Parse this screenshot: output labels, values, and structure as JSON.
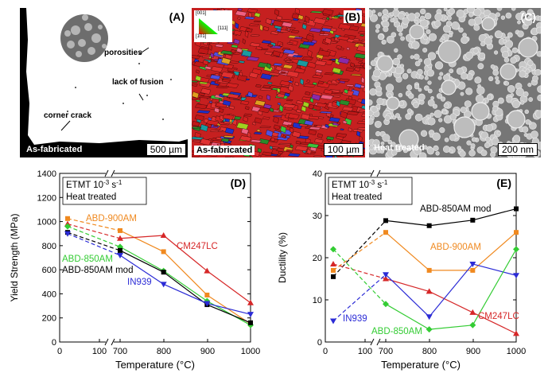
{
  "micrographs": {
    "a": {
      "label": "(A)",
      "caption": "As-fabricated",
      "scale": "500 µm",
      "annotations": [
        "porosities",
        "lack of fusion",
        "corner crack"
      ]
    },
    "b": {
      "label": "(B)",
      "caption": "As-fabricated",
      "scale": "100 µm",
      "key_labels": [
        "[001]",
        "[111]",
        "[101]"
      ]
    },
    "c": {
      "label": "(C)",
      "caption": "Heat treated",
      "scale": "200 nm"
    }
  },
  "colors": {
    "ABD-900AM": "#f0891f",
    "CM247LC": "#d62728",
    "ABD-850AM": "#33cc33",
    "ABD-850AM mod": "#000000",
    "IN939": "#2b2bd6"
  },
  "chart_data": [
    {
      "type": "line",
      "panel_label": "(D)",
      "legend_text": [
        "ETMT 10",
        "-3",
        " s",
        "-1"
      ],
      "legend_note": "Heat treated",
      "xlabel": "Temperature (°C)",
      "ylabel": "Yield Strength (MPa)",
      "x_ticks": [
        "0",
        "100",
        "700",
        "800",
        "900",
        "1000"
      ],
      "y_ticks": [
        0,
        200,
        400,
        600,
        800,
        1000,
        1200,
        1400
      ],
      "ylim": [
        0,
        1400
      ],
      "series": [
        {
          "name": "ABD-900AM",
          "x": [
            20,
            700,
            800,
            900,
            1000
          ],
          "values": [
            1025,
            925,
            750,
            390,
            150
          ]
        },
        {
          "name": "CM247LC",
          "x": [
            20,
            700,
            800,
            900,
            1000
          ],
          "values": [
            980,
            860,
            885,
            590,
            325
          ]
        },
        {
          "name": "ABD-850AM",
          "x": [
            20,
            700,
            800,
            900,
            1000
          ],
          "values": [
            960,
            790,
            590,
            340,
            140
          ]
        },
        {
          "name": "ABD-850AM mod",
          "x": [
            20,
            700,
            800,
            900,
            1000
          ],
          "values": [
            910,
            760,
            580,
            310,
            160
          ]
        },
        {
          "name": "IN939",
          "x": [
            20,
            700,
            800,
            900,
            1000
          ],
          "values": [
            900,
            720,
            480,
            320,
            230
          ]
        }
      ]
    },
    {
      "type": "line",
      "panel_label": "(E)",
      "legend_text": [
        "ETMT 10",
        "-3",
        " s",
        "-1"
      ],
      "legend_note": "Heat treated",
      "xlabel": "Temperature (°C)",
      "ylabel": "Ductility (%)",
      "x_ticks": [
        "0",
        "100",
        "700",
        "800",
        "900",
        "1000"
      ],
      "y_ticks": [
        0,
        10,
        20,
        30,
        40
      ],
      "ylim": [
        0,
        40
      ],
      "series": [
        {
          "name": "ABD-850AM mod",
          "x": [
            20,
            700,
            800,
            900,
            1000
          ],
          "values": [
            15.5,
            28.8,
            27.6,
            28.9,
            31.6
          ]
        },
        {
          "name": "ABD-900AM",
          "x": [
            20,
            700,
            800,
            900,
            1000
          ],
          "values": [
            17,
            26,
            17,
            17,
            26
          ]
        },
        {
          "name": "CM247LC",
          "x": [
            20,
            700,
            800,
            900,
            1000
          ],
          "values": [
            18.5,
            15,
            12,
            7,
            2
          ]
        },
        {
          "name": "IN939",
          "x": [
            20,
            700,
            800,
            900,
            1000
          ],
          "values": [
            5,
            16,
            6,
            18.5,
            15.8
          ]
        },
        {
          "name": "ABD-850AM",
          "x": [
            20,
            700,
            800,
            900,
            1000
          ],
          "values": [
            22,
            9,
            3,
            4,
            22
          ]
        }
      ]
    }
  ]
}
